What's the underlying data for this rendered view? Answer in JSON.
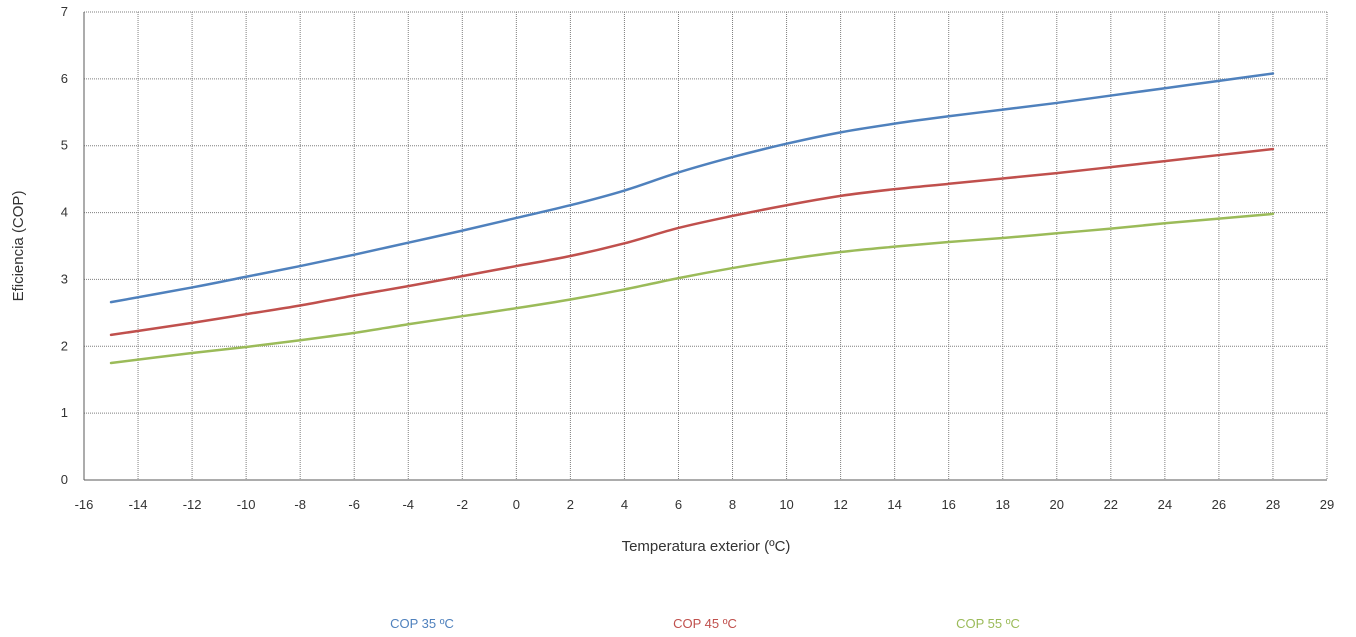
{
  "chart_data": {
    "type": "line",
    "title": "",
    "xlabel": "Temperatura exterior (ºC)",
    "ylabel": "Eficiencia (COP)",
    "xlim": [
      -16,
      29
    ],
    "ylim": [
      0,
      7
    ],
    "x_ticks": [
      -16,
      -14,
      -12,
      -10,
      -8,
      -6,
      -4,
      -2,
      0,
      2,
      4,
      6,
      8,
      10,
      12,
      14,
      16,
      18,
      20,
      22,
      24,
      26,
      28,
      29
    ],
    "x_tick_labels": [
      "-16",
      "-14",
      "-12",
      "-10",
      "-8",
      "-6",
      "-4",
      "-2",
      "0",
      "2",
      "4",
      "6",
      "8",
      "10",
      "12",
      "14",
      "16",
      "18",
      "20",
      "22",
      "24",
      "26",
      "28",
      "29"
    ],
    "y_ticks": [
      0,
      1,
      2,
      3,
      4,
      5,
      6,
      7
    ],
    "y_tick_labels": [
      "0",
      "1",
      "2",
      "3",
      "4",
      "5",
      "6",
      "7"
    ],
    "grid": true,
    "legend_position": "bottom",
    "series": [
      {
        "name": "COP 35 ºC",
        "color": "#4f81bd",
        "points": [
          [
            -15,
            2.66
          ],
          [
            -12,
            2.88
          ],
          [
            -10,
            3.04
          ],
          [
            -8,
            3.2
          ],
          [
            -6,
            3.37
          ],
          [
            -4,
            3.55
          ],
          [
            -2,
            3.73
          ],
          [
            0,
            3.92
          ],
          [
            2,
            4.11
          ],
          [
            4,
            4.33
          ],
          [
            6,
            4.6
          ],
          [
            8,
            4.83
          ],
          [
            10,
            5.03
          ],
          [
            12,
            5.2
          ],
          [
            14,
            5.33
          ],
          [
            16,
            5.44
          ],
          [
            18,
            5.54
          ],
          [
            20,
            5.64
          ],
          [
            22,
            5.75
          ],
          [
            24,
            5.86
          ],
          [
            26,
            5.97
          ],
          [
            28,
            6.08
          ]
        ]
      },
      {
        "name": "COP 45 ºC",
        "color": "#c0504d",
        "points": [
          [
            -15,
            2.17
          ],
          [
            -12,
            2.35
          ],
          [
            -10,
            2.48
          ],
          [
            -8,
            2.61
          ],
          [
            -6,
            2.76
          ],
          [
            -4,
            2.9
          ],
          [
            -2,
            3.05
          ],
          [
            0,
            3.2
          ],
          [
            2,
            3.35
          ],
          [
            4,
            3.54
          ],
          [
            6,
            3.77
          ],
          [
            8,
            3.95
          ],
          [
            10,
            4.11
          ],
          [
            12,
            4.25
          ],
          [
            14,
            4.35
          ],
          [
            16,
            4.43
          ],
          [
            18,
            4.51
          ],
          [
            20,
            4.59
          ],
          [
            22,
            4.68
          ],
          [
            24,
            4.77
          ],
          [
            26,
            4.86
          ],
          [
            28,
            4.95
          ]
        ]
      },
      {
        "name": "COP 55 ºC",
        "color": "#9bbb59",
        "points": [
          [
            -15,
            1.75
          ],
          [
            -12,
            1.9
          ],
          [
            -10,
            1.99
          ],
          [
            -8,
            2.09
          ],
          [
            -6,
            2.2
          ],
          [
            -4,
            2.33
          ],
          [
            -2,
            2.45
          ],
          [
            0,
            2.57
          ],
          [
            2,
            2.7
          ],
          [
            4,
            2.85
          ],
          [
            6,
            3.02
          ],
          [
            8,
            3.17
          ],
          [
            10,
            3.3
          ],
          [
            12,
            3.41
          ],
          [
            14,
            3.49
          ],
          [
            16,
            3.56
          ],
          [
            18,
            3.62
          ],
          [
            20,
            3.69
          ],
          [
            22,
            3.76
          ],
          [
            24,
            3.84
          ],
          [
            26,
            3.91
          ],
          [
            28,
            3.98
          ]
        ]
      }
    ]
  }
}
